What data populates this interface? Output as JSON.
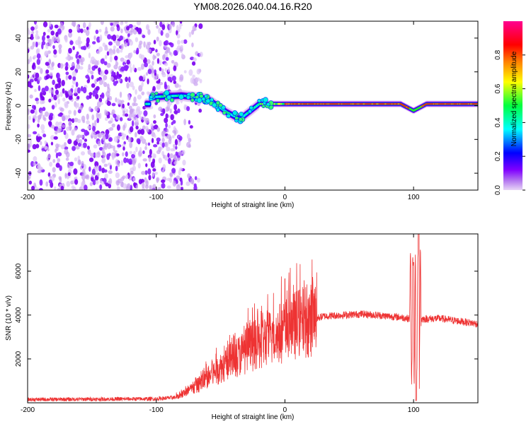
{
  "title": "YM08.2026.040.04.16.R20",
  "chart_data": [
    {
      "type": "heatmap",
      "name": "spectrogram",
      "xlabel": "Height of straight line (km)",
      "ylabel": "Frequency (Hz)",
      "xlim": [
        -200,
        150
      ],
      "ylim": [
        -50,
        50
      ],
      "xticks": [
        -200,
        -100,
        0,
        100
      ],
      "yticks": [
        -40,
        -20,
        0,
        20,
        40
      ],
      "description_points": {
        "noise_region_x": [
          -200,
          -80
        ],
        "signal_track": [
          {
            "x": -105,
            "y": 5
          },
          {
            "x": -80,
            "y": 6
          },
          {
            "x": -60,
            "y": 4
          },
          {
            "x": -45,
            "y": -4
          },
          {
            "x": -35,
            "y": -8
          },
          {
            "x": -20,
            "y": 1
          },
          {
            "x": 0,
            "y": 1
          },
          {
            "x": 50,
            "y": 1
          },
          {
            "x": 90,
            "y": 1
          },
          {
            "x": 100,
            "y": -3
          },
          {
            "x": 110,
            "y": 1
          },
          {
            "x": 150,
            "y": 1
          }
        ]
      },
      "colorbar": {
        "label": "Normalized spectral amplitude",
        "ticks": [
          0.0,
          0.2,
          0.4,
          0.6,
          0.8
        ],
        "range": [
          0,
          1
        ],
        "colors": [
          "#e6ccf5",
          "#8000ff",
          "#0000ff",
          "#00ffff",
          "#00ff00",
          "#ffff00",
          "#ff8000",
          "#ff0000",
          "#ff0080"
        ]
      }
    },
    {
      "type": "line",
      "name": "snr",
      "xlabel": "Height of straight line (km)",
      "ylabel": "SNR (10 * v/v)",
      "xlim": [
        -200,
        150
      ],
      "ylim": [
        0,
        7700
      ],
      "xticks": [
        -200,
        -100,
        0,
        100
      ],
      "yticks": [
        2000,
        4000,
        6000
      ],
      "color": "#ee3333",
      "envelope": [
        {
          "x": -200,
          "y": 150
        },
        {
          "x": -100,
          "y": 180
        },
        {
          "x": -85,
          "y": 250
        },
        {
          "x": -70,
          "y": 700
        },
        {
          "x": -50,
          "y": 1600
        },
        {
          "x": -30,
          "y": 2400
        },
        {
          "x": -10,
          "y": 3000
        },
        {
          "x": 10,
          "y": 3600
        },
        {
          "x": 30,
          "y": 3950
        },
        {
          "x": 60,
          "y": 4050
        },
        {
          "x": 90,
          "y": 3900
        },
        {
          "x": 100,
          "y": 3800
        },
        {
          "x": 120,
          "y": 3850
        },
        {
          "x": 150,
          "y": 3600
        }
      ],
      "spike": {
        "x": 104,
        "ymax": 7700,
        "ymin": 100
      }
    }
  ]
}
